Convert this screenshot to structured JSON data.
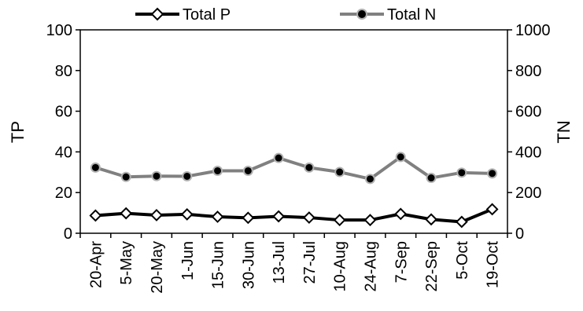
{
  "chart_data": {
    "type": "line",
    "title": "",
    "categories": [
      "20-Apr",
      "5-May",
      "20-May",
      "1-Jun",
      "15-Jun",
      "30-Jun",
      "13-Jul",
      "27-Jul",
      "10-Aug",
      "24-Aug",
      "7-Sep",
      "22-Sep",
      "5-Oct",
      "19-Oct"
    ],
    "xlabel": "",
    "ylabel_left": "TP",
    "ylabel_right": "TN",
    "ylim_left": [
      0,
      100
    ],
    "ylim_right": [
      0,
      1000
    ],
    "yticks_left": [
      "0",
      "20",
      "40",
      "60",
      "80",
      "100"
    ],
    "yticks_right": [
      "0",
      "200",
      "400",
      "600",
      "800",
      "1000"
    ],
    "grid": false,
    "legend_position": "top",
    "series": [
      {
        "name": "Total P",
        "axis": "left",
        "color": "#000000",
        "marker": "diamond-open",
        "values": [
          8.7,
          9.8,
          8.9,
          9.3,
          8.1,
          7.6,
          8.3,
          7.7,
          6.5,
          6.5,
          9.5,
          6.8,
          5.6,
          11.8
        ]
      },
      {
        "name": "Total N",
        "axis": "right",
        "color": "#808080",
        "marker": "circle-filled",
        "values": [
          323,
          277,
          281,
          280,
          307,
          307,
          370,
          323,
          301,
          267,
          375,
          272,
          298,
          294
        ]
      }
    ]
  }
}
